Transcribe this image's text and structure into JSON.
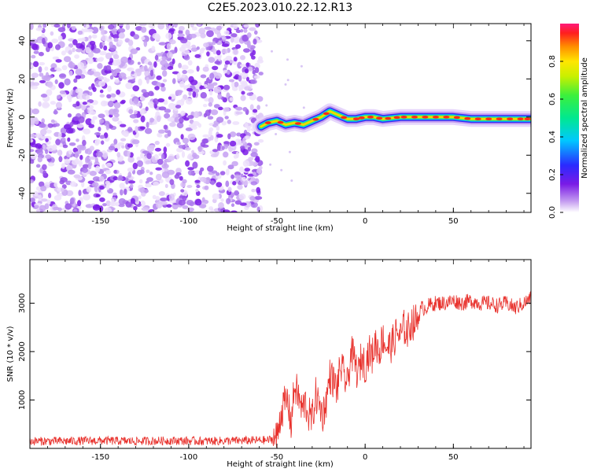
{
  "figure": {
    "title": "C2E5.2023.010.22.12.R13"
  },
  "colors": {
    "snr_line": "#e8312c",
    "axis": "#000000",
    "noise_purple": "#8a2be2"
  },
  "chart_data": [
    {
      "type": "heatmap",
      "title": "C2E5.2023.010.22.12.R13",
      "xlabel": "Height of straight line (km)",
      "ylabel": "Frequency (Hz)",
      "xlim": [
        -190,
        94
      ],
      "ylim": [
        -50,
        49
      ],
      "xticks": [
        -150,
        -100,
        -50,
        0,
        50
      ],
      "yticks": [
        -40,
        -20,
        0,
        20,
        40
      ],
      "noise_region_x": [
        -190,
        -59
      ],
      "signal_trace": {
        "x": [
          -59,
          -55,
          -50,
          -45,
          -40,
          -35,
          -30,
          -25,
          -20,
          -15,
          -10,
          -5,
          0,
          5,
          10,
          20,
          30,
          40,
          50,
          60,
          70,
          80,
          90,
          94
        ],
        "y": [
          -5,
          -3,
          -2,
          -4,
          -3,
          -4,
          -2,
          0,
          3,
          1,
          -1,
          -1,
          0,
          0,
          -1,
          0,
          0,
          0,
          0,
          -1,
          -1,
          -1,
          -1,
          -1
        ]
      },
      "colorbar": {
        "label": "Normalized spectral amplitude",
        "range": [
          0,
          1
        ],
        "ticks": [
          0.0,
          0.2,
          0.4,
          0.6,
          0.8
        ],
        "tick_labels": [
          "0.0",
          "0.2",
          "0.4",
          "0.6",
          "0.8"
        ]
      }
    },
    {
      "type": "line",
      "xlabel": "Height of straight line (km)",
      "ylabel": "SNR (10 * v/v)",
      "xlim": [
        -190,
        94
      ],
      "ylim": [
        0,
        3900
      ],
      "xticks": [
        -150,
        -100,
        -50,
        0,
        50
      ],
      "yticks": [
        1000,
        2000,
        3000
      ],
      "series": [
        {
          "x": [
            -190,
            -170,
            -150,
            -130,
            -110,
            -90,
            -70,
            -55,
            -50,
            -48,
            -46,
            -44,
            -42,
            -40,
            -38,
            -36,
            -34,
            -32,
            -30,
            -28,
            -26,
            -24,
            -22,
            -20,
            -18,
            -16,
            -14,
            -12,
            -10,
            -8,
            -6,
            -4,
            -2,
            0,
            2,
            4,
            6,
            8,
            10,
            12,
            14,
            16,
            18,
            20,
            22,
            24,
            26,
            28,
            30,
            32,
            34,
            36,
            40,
            45,
            50,
            55,
            60,
            65,
            70,
            75,
            80,
            85,
            90,
            94
          ],
          "y": [
            150,
            150,
            160,
            150,
            160,
            150,
            160,
            170,
            220,
            700,
            900,
            1000,
            500,
            1300,
            1100,
            800,
            950,
            700,
            600,
            1100,
            900,
            700,
            1000,
            1500,
            1400,
            1200,
            1700,
            1500,
            1300,
            2000,
            1800,
            1500,
            1900,
            1700,
            2000,
            1900,
            2200,
            2000,
            2300,
            2100,
            2100,
            2200,
            2400,
            2300,
            2500,
            2400,
            2600,
            2600,
            2700,
            2900,
            2900,
            2950,
            3000,
            3000,
            3050,
            3000,
            3050,
            3000,
            3000,
            2950,
            3000,
            2900,
            3000,
            3100
          ]
        }
      ]
    }
  ]
}
